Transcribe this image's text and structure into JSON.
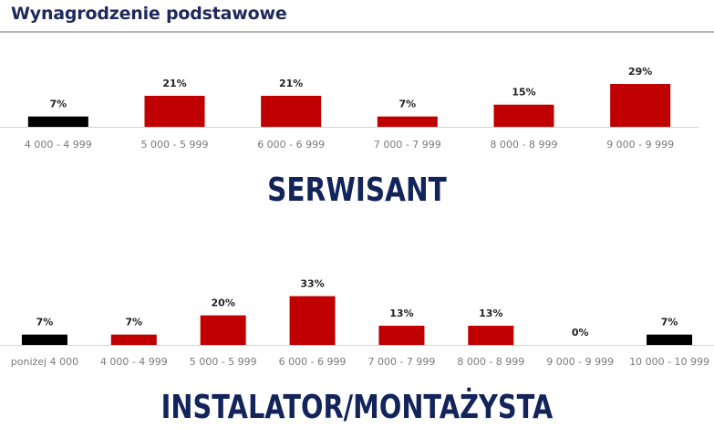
{
  "page": {
    "title": "Wynagrodzenie podstawowe"
  },
  "sections": [
    {
      "title": "SERWISANT"
    },
    {
      "title": "INSTALATOR/MONTAŻYSTA"
    }
  ],
  "chart_data": [
    {
      "type": "bar",
      "title": "SERWISANT",
      "categories": [
        "4 000 - 4 999",
        "5 000 - 5 999",
        "6 000 - 6 999",
        "7 000 - 7 999",
        "8 000 - 8 999",
        "9 000 - 9 999"
      ],
      "values": [
        7,
        21,
        21,
        7,
        15,
        29
      ],
      "value_labels": [
        "7%",
        "21%",
        "21%",
        "7%",
        "15%",
        "29%"
      ],
      "unit": "%",
      "bar_colors": [
        "#000000",
        "#c00000",
        "#c00000",
        "#c00000",
        "#c00000",
        "#c00000"
      ],
      "grid": false,
      "legend": "none"
    },
    {
      "type": "bar",
      "title": "INSTALATOR/MONTAŻYSTA",
      "categories": [
        "poniżej 4 000",
        "4 000 - 4 999",
        "5 000 - 5 999",
        "6 000 - 6 999",
        "7 000 - 7 999",
        "8 000 - 8 999",
        "9 000 - 9 999",
        "10 000 - 10 999"
      ],
      "values": [
        7,
        7,
        20,
        33,
        13,
        13,
        0,
        7
      ],
      "value_labels": [
        "7%",
        "7%",
        "20%",
        "33%",
        "13%",
        "13%",
        "0%",
        "7%"
      ],
      "unit": "%",
      "bar_colors": [
        "#000000",
        "#c00000",
        "#c00000",
        "#c00000",
        "#c00000",
        "#c00000",
        "#c00000",
        "#000000"
      ],
      "grid": false,
      "legend": "none"
    }
  ]
}
